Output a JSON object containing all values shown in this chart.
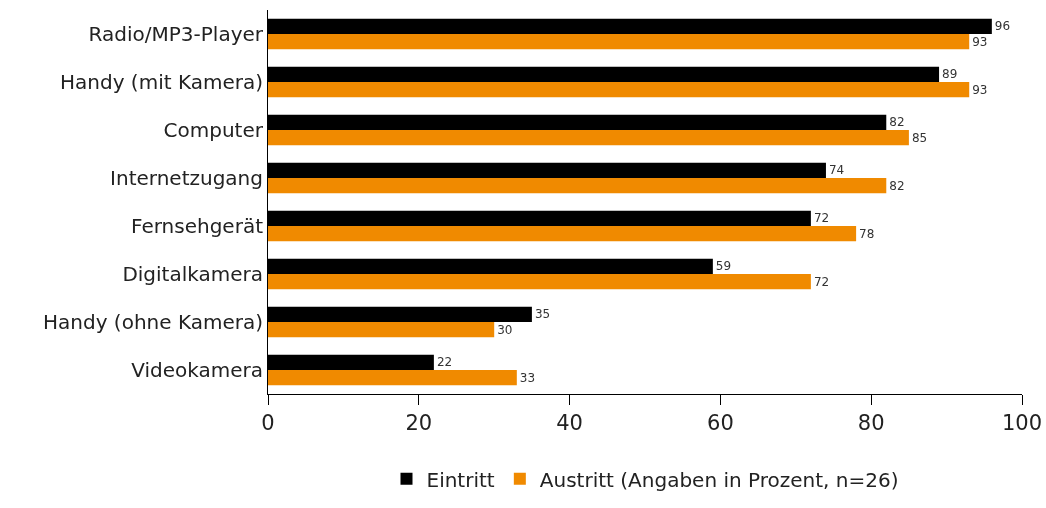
{
  "chart_data": {
    "type": "bar",
    "orientation": "horizontal",
    "categories": [
      "Radio/MP3-Player",
      "Handy (mit Kamera)",
      "Computer",
      "Internetzugang",
      "Fernsehgerät",
      "Digitalkamera",
      "Handy (ohne Kamera)",
      "Videokamera"
    ],
    "series": [
      {
        "name": "Eintritt",
        "color": "#000000",
        "values": [
          96,
          89,
          82,
          74,
          72,
          59,
          35,
          22
        ]
      },
      {
        "name": "Austritt (Angaben in Prozent, n=26)",
        "color": "#f08a00",
        "values": [
          93,
          93,
          85,
          82,
          78,
          72,
          30,
          33
        ]
      }
    ],
    "xlim": [
      0,
      100
    ],
    "xticks": [
      0,
      20,
      40,
      60,
      80,
      100
    ],
    "grid": false,
    "legend": "bottom",
    "data_labels": true
  }
}
